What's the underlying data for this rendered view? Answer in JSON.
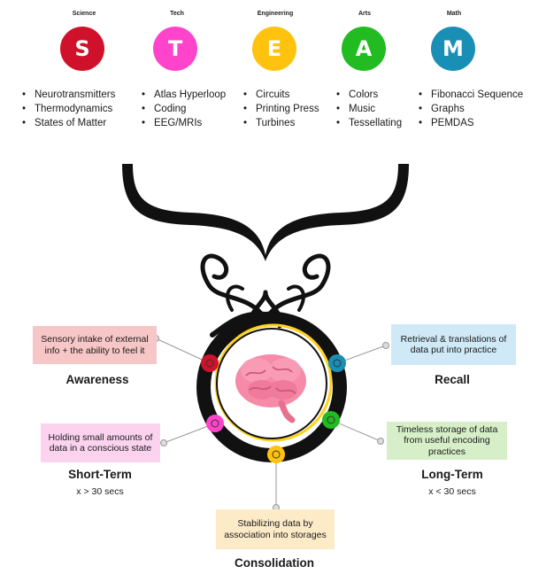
{
  "steam": [
    {
      "category": "Science",
      "letter": "S",
      "color": "#d0112b",
      "items": [
        "Neurotransmitters",
        "Thermodynamics",
        "States of Matter"
      ]
    },
    {
      "category": "Tech",
      "letter": "T",
      "color": "#ff44cc",
      "items": [
        "Atlas Hyperloop",
        "Coding",
        "EEG/MRIs"
      ]
    },
    {
      "category": "Engineering",
      "letter": "E",
      "color": "#ffc20e",
      "items": [
        "Circuits",
        "Printing Press",
        "Turbines"
      ]
    },
    {
      "category": "Arts",
      "letter": "A",
      "color": "#22bb22",
      "items": [
        "Colors",
        "Music",
        "Tessellating"
      ]
    },
    {
      "category": "Math",
      "letter": "M",
      "color": "#1a8fb5",
      "items": [
        "Fibonacci Sequence",
        "Graphs",
        "PEMDAS"
      ]
    }
  ],
  "stages": {
    "awareness": {
      "title": "Awareness",
      "desc": "Sensory intake of external info + the ability to feel it",
      "box_color": "#f7c6c7",
      "dot_color": "#d0112b"
    },
    "short_term": {
      "title": "Short-Term",
      "sub": "x > 30 secs",
      "desc": "Holding small amounts of data in a conscious state",
      "box_color": "#fbd3ef",
      "dot_color": "#ff44cc"
    },
    "consolidation": {
      "title": "Consolidation",
      "desc": "Stabilizing data by association into storages",
      "box_color": "#fdebc8",
      "dot_color": "#ffc20e"
    },
    "long_term": {
      "title": "Long-Term",
      "sub": "x < 30 secs",
      "desc": "Timeless storage of data from useful encoding practices",
      "box_color": "#d6efc8",
      "dot_color": "#22bb22"
    },
    "recall": {
      "title": "Recall",
      "desc": "Retrieval & translations of data put into practice",
      "box_color": "#cfe9f7",
      "dot_color": "#1a8fb5"
    }
  },
  "icons": {
    "center": "brain-icon",
    "bracket": "curly-brace-icon",
    "ornament": "scroll-ornament-icon"
  }
}
